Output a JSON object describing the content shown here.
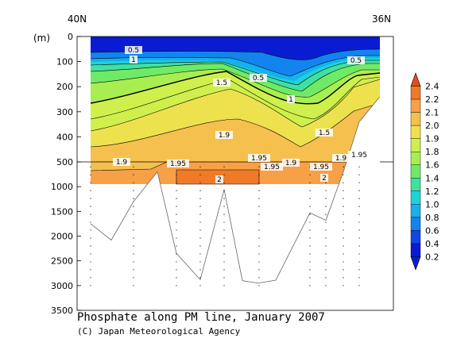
{
  "chart_data": {
    "type": "contour",
    "title": "Phosphate along PM line, January 2007",
    "credit": "(C) Japan Meteorological Agency",
    "ylabel": "(m)",
    "x_start_label": "40N",
    "x_end_label": "36N",
    "y_ticks": [
      0,
      100,
      200,
      300,
      400,
      500,
      1000,
      1500,
      2000,
      2500,
      3000,
      3500
    ],
    "y_axis": "depth",
    "y_scale": "piecewise: 0-500 m upper panel, 500-3500 m lower panel",
    "colorbar": {
      "levels": [
        "2.4",
        "2.2",
        "2.1",
        "2.0",
        "1.9",
        "1.8",
        "1.6",
        "1.4",
        "1.2",
        "1.0",
        "0.8",
        "0.6",
        "0.4",
        "0.2"
      ],
      "colors": [
        "#e64a1e",
        "#f07a28",
        "#f7a046",
        "#f5c04e",
        "#ede24e",
        "#cff04c",
        "#a8ee52",
        "#6fea66",
        "#3fe0a0",
        "#1ed2d8",
        "#16b0ee",
        "#1284ee",
        "#1048e6",
        "#0a1cd2"
      ]
    },
    "contour_labels": [
      {
        "text": "0.5"
      },
      {
        "text": "1"
      },
      {
        "text": "0.5"
      },
      {
        "text": "0.5"
      },
      {
        "text": "1.5"
      },
      {
        "text": "1"
      },
      {
        "text": "1.5"
      },
      {
        "text": "1.9"
      },
      {
        "text": "1.9"
      },
      {
        "text": "1.95"
      },
      {
        "text": "1.95"
      },
      {
        "text": "1.95"
      },
      {
        "text": "1.9"
      },
      {
        "text": "1.95"
      },
      {
        "text": "1.9"
      },
      {
        "text": "1.95"
      },
      {
        "text": "2"
      },
      {
        "text": "2"
      }
    ],
    "bottom_profile_depth_m": [
      1750,
      2080,
      1300,
      700,
      2350,
      2880,
      1060,
      2900,
      2950,
      2890,
      1530,
      1680,
      700,
      340,
      240
    ]
  }
}
